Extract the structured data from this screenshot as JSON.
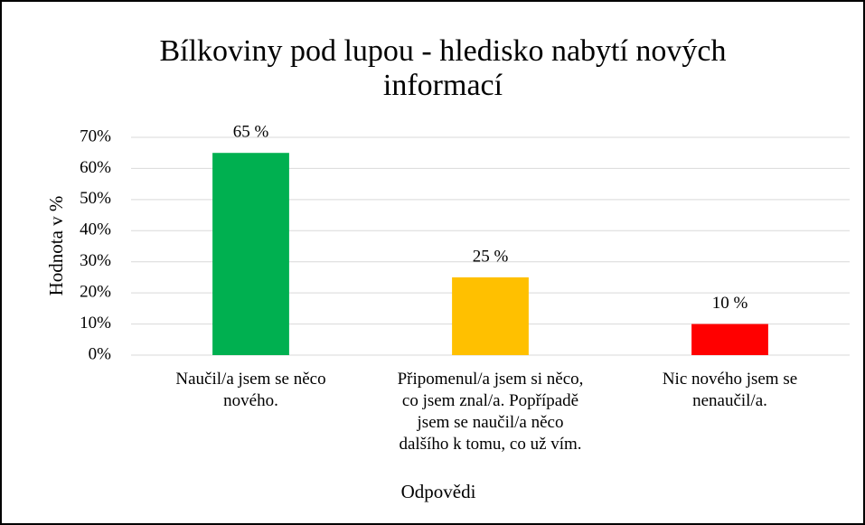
{
  "chart_data": {
    "type": "bar",
    "title": "Bílkoviny pod lupou - hledisko nabytí nových\ninformací",
    "x_label": "Odpovědi",
    "y_label": "Hodnota v %",
    "categories": [
      "Naučil/a jsem se něco\nnového.",
      "Připomenul/a jsem si něco,\nco jsem znal/a. Popřípadě\njsem se naučil/a něco\ndalšího k tomu, co už vím.",
      "Nic nového jsem se\nnenaučil/a."
    ],
    "values": [
      65,
      25,
      10
    ],
    "value_labels": [
      "65 %",
      "25 %",
      "10 %"
    ],
    "colors": [
      "#00b050",
      "#ffc000",
      "#ff0000"
    ],
    "ylim": [
      0,
      70
    ],
    "yticks": [
      {
        "value": 0,
        "label": "0%"
      },
      {
        "value": 10,
        "label": "10%"
      },
      {
        "value": 20,
        "label": "20%"
      },
      {
        "value": 30,
        "label": "30%"
      },
      {
        "value": 40,
        "label": "40%"
      },
      {
        "value": 50,
        "label": "50%"
      },
      {
        "value": 60,
        "label": "60%"
      },
      {
        "value": 70,
        "label": "70%"
      }
    ],
    "grid": true
  }
}
